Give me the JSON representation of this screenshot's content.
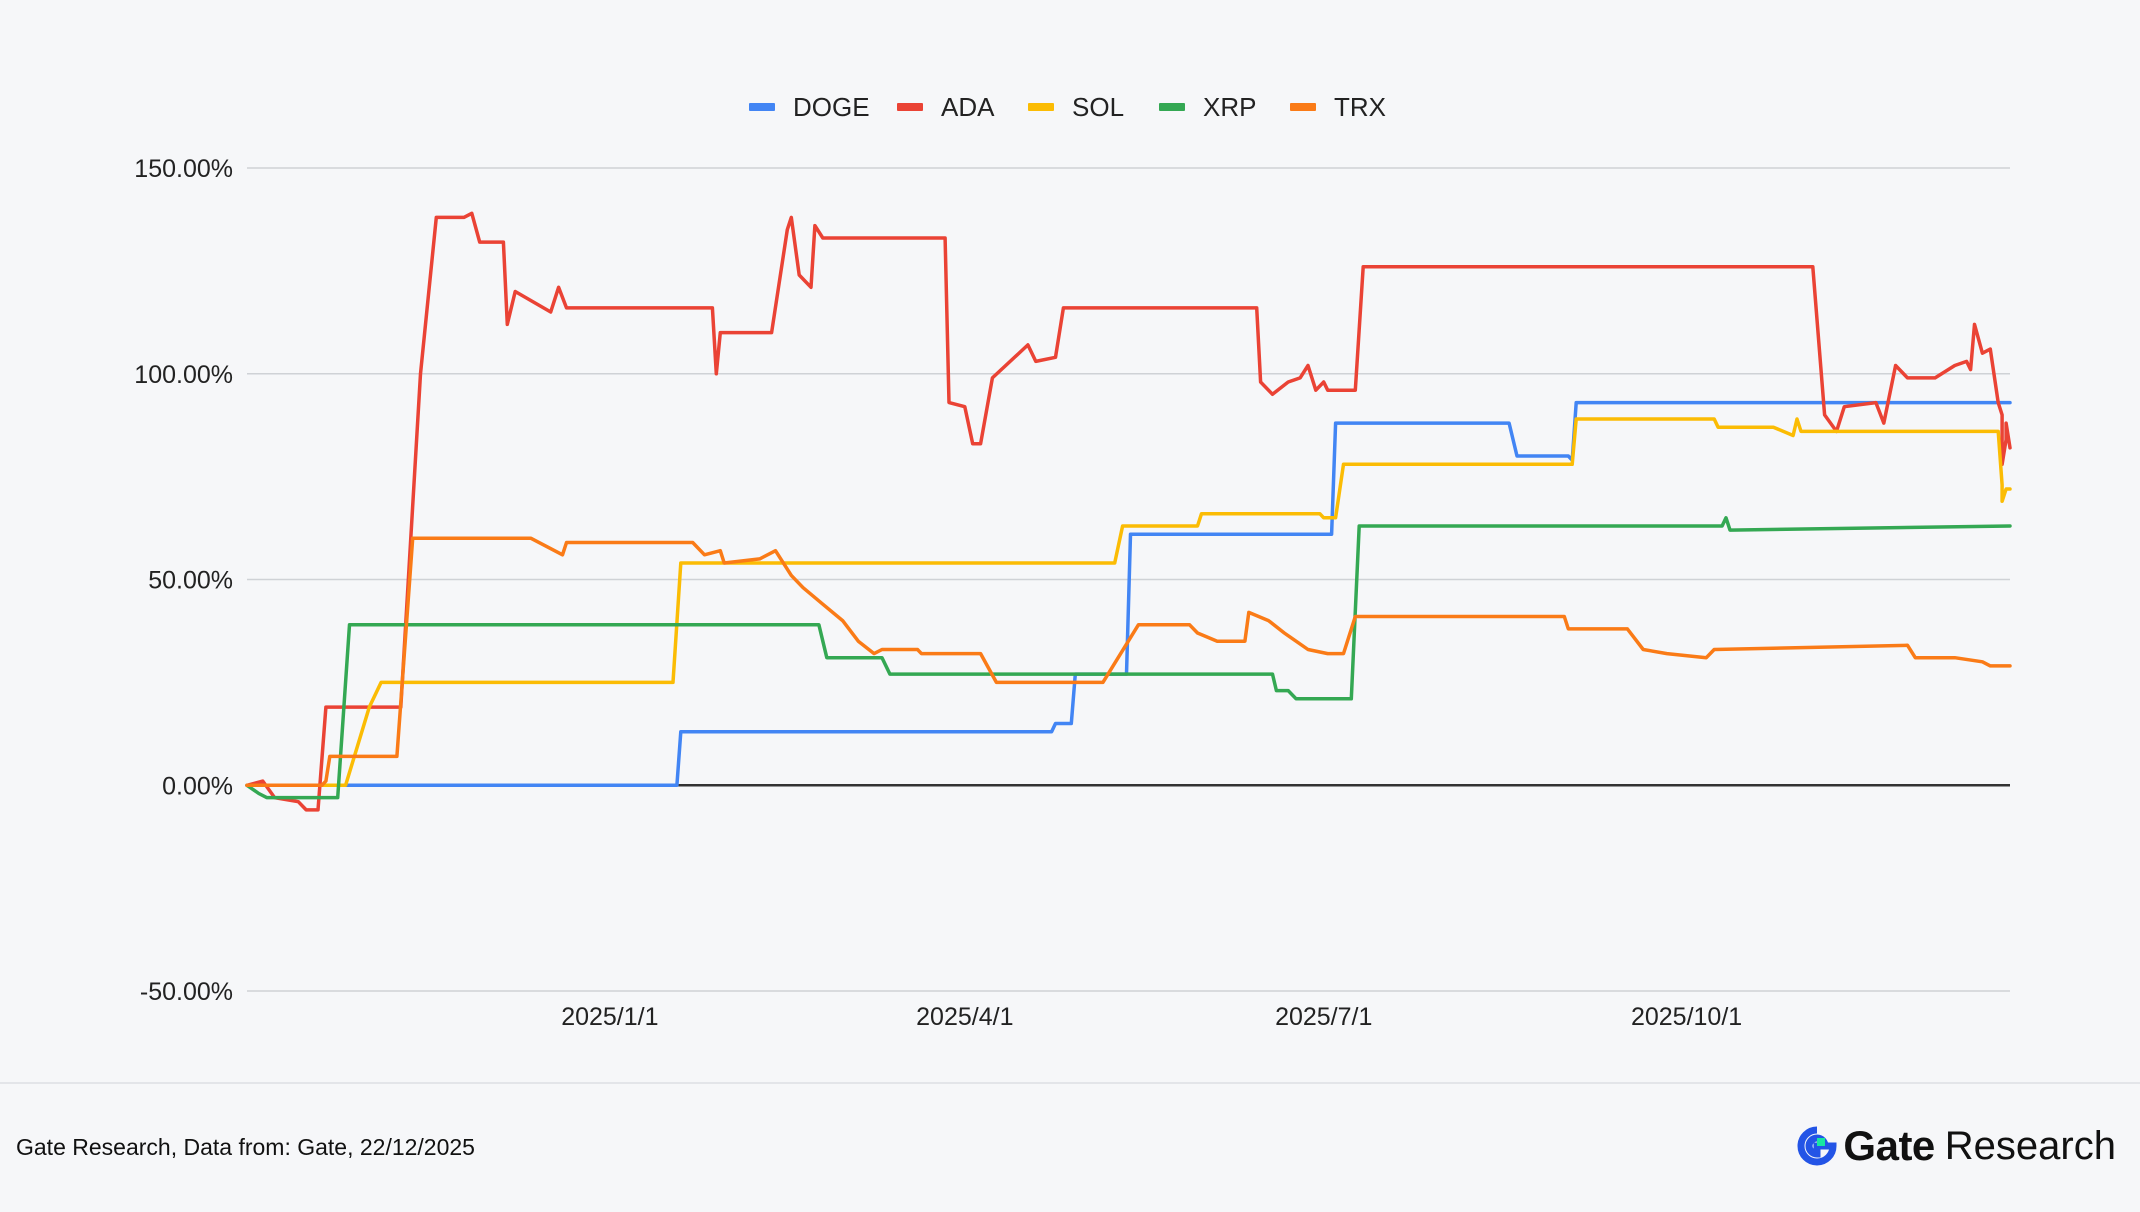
{
  "chart_data": {
    "type": "line",
    "title": "",
    "xlabel": "",
    "ylabel": "",
    "x_range": [
      "2024-10-01",
      "2025-12-22"
    ],
    "x_ticks": [
      "2025/1/1",
      "2025/4/1",
      "2025/7/1",
      "2025/10/1"
    ],
    "x_tick_dates": [
      "2025-01-01",
      "2025-04-01",
      "2025-07-01",
      "2025-10-01"
    ],
    "y_ticks": [
      "150.00%",
      "100.00%",
      "50.00%",
      "0.00%",
      "-50.00%"
    ],
    "y_tick_values": [
      150,
      100,
      50,
      0,
      -50
    ],
    "ylim": [
      -50,
      150
    ],
    "grid": true,
    "legend_position": "top-center",
    "series": [
      {
        "name": "DOGE",
        "color": "#4285f4",
        "points": [
          [
            "2024-10-01",
            0
          ],
          [
            "2025-01-18",
            0
          ],
          [
            "2025-01-19",
            13
          ],
          [
            "2025-04-23",
            13
          ],
          [
            "2025-04-24",
            15
          ],
          [
            "2025-04-28",
            15
          ],
          [
            "2025-04-29",
            27
          ],
          [
            "2025-05-12",
            27
          ],
          [
            "2025-05-13",
            61
          ],
          [
            "2025-07-03",
            61
          ],
          [
            "2025-07-04",
            88
          ],
          [
            "2025-08-17",
            88
          ],
          [
            "2025-08-19",
            80
          ],
          [
            "2025-09-01",
            80
          ],
          [
            "2025-09-02",
            79
          ],
          [
            "2025-09-03",
            93
          ],
          [
            "2025-12-22",
            93
          ]
        ]
      },
      {
        "name": "ADA",
        "color": "#ea4335",
        "points": [
          [
            "2024-10-01",
            0
          ],
          [
            "2024-10-05",
            1
          ],
          [
            "2024-10-08",
            -3
          ],
          [
            "2024-10-14",
            -4
          ],
          [
            "2024-10-16",
            -6
          ],
          [
            "2024-10-19",
            -6
          ],
          [
            "2024-10-21",
            19
          ],
          [
            "2024-11-09",
            19
          ],
          [
            "2024-11-14",
            100
          ],
          [
            "2024-11-18",
            138
          ],
          [
            "2024-11-25",
            138
          ],
          [
            "2024-11-27",
            139
          ],
          [
            "2024-11-29",
            132
          ],
          [
            "2024-12-05",
            132
          ],
          [
            "2024-12-06",
            112
          ],
          [
            "2024-12-08",
            120
          ],
          [
            "2024-12-17",
            115
          ],
          [
            "2024-12-19",
            121
          ],
          [
            "2024-12-21",
            116
          ],
          [
            "2025-01-27",
            116
          ],
          [
            "2025-01-28",
            100
          ],
          [
            "2025-01-29",
            110
          ],
          [
            "2025-02-11",
            110
          ],
          [
            "2025-02-15",
            135
          ],
          [
            "2025-02-16",
            138
          ],
          [
            "2025-02-18",
            124
          ],
          [
            "2025-02-21",
            121
          ],
          [
            "2025-02-22",
            136
          ],
          [
            "2025-02-24",
            133
          ],
          [
            "2025-03-27",
            133
          ],
          [
            "2025-03-28",
            93
          ],
          [
            "2025-04-01",
            92
          ],
          [
            "2025-04-03",
            83
          ],
          [
            "2025-04-05",
            83
          ],
          [
            "2025-04-08",
            99
          ],
          [
            "2025-04-17",
            107
          ],
          [
            "2025-04-19",
            103
          ],
          [
            "2025-04-24",
            104
          ],
          [
            "2025-04-26",
            116
          ],
          [
            "2025-06-14",
            116
          ],
          [
            "2025-06-15",
            98
          ],
          [
            "2025-06-18",
            95
          ],
          [
            "2025-06-22",
            98
          ],
          [
            "2025-06-25",
            99
          ],
          [
            "2025-06-27",
            102
          ],
          [
            "2025-06-29",
            96
          ],
          [
            "2025-07-01",
            98
          ],
          [
            "2025-07-02",
            96
          ],
          [
            "2025-07-09",
            96
          ],
          [
            "2025-07-11",
            126
          ],
          [
            "2025-11-02",
            126
          ],
          [
            "2025-11-05",
            90
          ],
          [
            "2025-11-08",
            86
          ],
          [
            "2025-11-10",
            92
          ],
          [
            "2025-11-18",
            93
          ],
          [
            "2025-11-20",
            88
          ],
          [
            "2025-11-23",
            102
          ],
          [
            "2025-11-26",
            99
          ],
          [
            "2025-12-03",
            99
          ],
          [
            "2025-12-08",
            102
          ],
          [
            "2025-12-11",
            103
          ],
          [
            "2025-12-12",
            101
          ],
          [
            "2025-12-13",
            112
          ],
          [
            "2025-12-15",
            105
          ],
          [
            "2025-12-17",
            106
          ],
          [
            "2025-12-19",
            93
          ],
          [
            "2025-12-20",
            90
          ],
          [
            "2025-12-20",
            78
          ],
          [
            "2025-12-21",
            84
          ],
          [
            "2025-12-21",
            88
          ],
          [
            "2025-12-22",
            82
          ]
        ]
      },
      {
        "name": "SOL",
        "color": "#fbbc04",
        "points": [
          [
            "2024-10-01",
            0
          ],
          [
            "2024-10-26",
            0
          ],
          [
            "2024-11-01",
            19
          ],
          [
            "2024-11-04",
            25
          ],
          [
            "2025-01-17",
            25
          ],
          [
            "2025-01-19",
            54
          ],
          [
            "2025-05-09",
            54
          ],
          [
            "2025-05-11",
            63
          ],
          [
            "2025-05-30",
            63
          ],
          [
            "2025-05-31",
            66
          ],
          [
            "2025-06-30",
            66
          ],
          [
            "2025-07-01",
            65
          ],
          [
            "2025-07-04",
            65
          ],
          [
            "2025-07-06",
            78
          ],
          [
            "2025-09-02",
            78
          ],
          [
            "2025-09-03",
            89
          ],
          [
            "2025-10-08",
            89
          ],
          [
            "2025-10-09",
            87
          ],
          [
            "2025-10-23",
            87
          ],
          [
            "2025-10-28",
            85
          ],
          [
            "2025-10-29",
            89
          ],
          [
            "2025-10-30",
            86
          ],
          [
            "2025-12-19",
            86
          ],
          [
            "2025-12-20",
            73
          ],
          [
            "2025-12-20",
            69
          ],
          [
            "2025-12-21",
            72
          ],
          [
            "2025-12-22",
            72
          ]
        ]
      },
      {
        "name": "XRP",
        "color": "#34a853",
        "points": [
          [
            "2024-10-01",
            0
          ],
          [
            "2024-10-04",
            -2
          ],
          [
            "2024-10-06",
            -3
          ],
          [
            "2024-10-18",
            -3
          ],
          [
            "2024-10-21",
            -3
          ],
          [
            "2024-10-24",
            -3
          ],
          [
            "2024-10-27",
            39
          ],
          [
            "2025-02-23",
            39
          ],
          [
            "2025-02-25",
            31
          ],
          [
            "2025-03-11",
            31
          ],
          [
            "2025-03-13",
            27
          ],
          [
            "2025-06-18",
            27
          ],
          [
            "2025-06-19",
            23
          ],
          [
            "2025-06-22",
            23
          ],
          [
            "2025-06-24",
            21
          ],
          [
            "2025-07-08",
            21
          ],
          [
            "2025-07-10",
            63
          ],
          [
            "2025-10-10",
            63
          ],
          [
            "2025-10-11",
            65
          ],
          [
            "2025-10-12",
            62
          ],
          [
            "2025-12-22",
            63
          ]
        ]
      },
      {
        "name": "TRX",
        "color": "#fa7b17",
        "points": [
          [
            "2024-10-01",
            0
          ],
          [
            "2024-10-20",
            0
          ],
          [
            "2024-10-21",
            1
          ],
          [
            "2024-10-22",
            7
          ],
          [
            "2024-11-08",
            7
          ],
          [
            "2024-11-12",
            60
          ],
          [
            "2024-12-12",
            60
          ],
          [
            "2024-12-20",
            56
          ],
          [
            "2024-12-21",
            59
          ],
          [
            "2025-01-22",
            59
          ],
          [
            "2025-01-25",
            56
          ],
          [
            "2025-01-29",
            57
          ],
          [
            "2025-01-30",
            54
          ],
          [
            "2025-02-08",
            55
          ],
          [
            "2025-02-12",
            57
          ],
          [
            "2025-02-16",
            51
          ],
          [
            "2025-02-19",
            48
          ],
          [
            "2025-02-24",
            44
          ],
          [
            "2025-03-01",
            40
          ],
          [
            "2025-03-05",
            35
          ],
          [
            "2025-03-09",
            32
          ],
          [
            "2025-03-11",
            33
          ],
          [
            "2025-03-20",
            33
          ],
          [
            "2025-03-21",
            32
          ],
          [
            "2025-04-05",
            32
          ],
          [
            "2025-04-09",
            25
          ],
          [
            "2025-05-06",
            25
          ],
          [
            "2025-05-15",
            39
          ],
          [
            "2025-05-28",
            39
          ],
          [
            "2025-05-30",
            37
          ],
          [
            "2025-06-04",
            35
          ],
          [
            "2025-06-11",
            35
          ],
          [
            "2025-06-12",
            42
          ],
          [
            "2025-06-17",
            40
          ],
          [
            "2025-06-21",
            37
          ],
          [
            "2025-06-27",
            33
          ],
          [
            "2025-07-02",
            32
          ],
          [
            "2025-07-06",
            32
          ],
          [
            "2025-07-09",
            41
          ],
          [
            "2025-08-31",
            41
          ],
          [
            "2025-09-01",
            38
          ],
          [
            "2025-09-16",
            38
          ],
          [
            "2025-09-20",
            33
          ],
          [
            "2025-09-26",
            32
          ],
          [
            "2025-10-06",
            31
          ],
          [
            "2025-10-08",
            33
          ],
          [
            "2025-11-26",
            34
          ],
          [
            "2025-11-28",
            31
          ],
          [
            "2025-12-08",
            31
          ],
          [
            "2025-12-15",
            30
          ],
          [
            "2025-12-17",
            29
          ],
          [
            "2025-12-18",
            29
          ],
          [
            "2025-12-22",
            29
          ]
        ]
      }
    ]
  },
  "footer": {
    "source": "Gate Research, Data from: Gate, 22/12/2025",
    "brand_name": "Gate",
    "brand_sub": "Research",
    "brand_icon": "gate-logo-icon",
    "brand_color": "#111111",
    "brand_accent": "#17e6a1",
    "brand_blue": "#2354e6"
  }
}
